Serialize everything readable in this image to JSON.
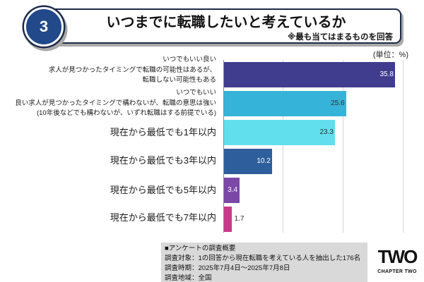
{
  "header": {
    "number": "3",
    "title": "いつまでに転職したいと考えているか",
    "subtitle": "※最も当てはまるものを回答"
  },
  "theme": {
    "frame": "#1d2a48",
    "accent": "#22498a",
    "panel": "#d9d9d9"
  },
  "chart_data": {
    "type": "bar",
    "orientation": "horizontal",
    "unit_label": "(単位：%)",
    "categories": [
      [
        "いつでもいい良い",
        "求人が見つかったタイミングで転職の可能性はあるが、",
        "転職しない可能性もある"
      ],
      [
        "いつでもいい",
        "良い求人が見つかったタイミングで構わないが、転職の意思は強い",
        "(10年後などでも構わないが、いずれ転職はする前提でいる)"
      ],
      [
        "現在から最低でも1年以内"
      ],
      [
        "現在から最低でも3年以内"
      ],
      [
        "現在から最低でも5年以内"
      ],
      [
        "現在から最低でも7年以内"
      ]
    ],
    "values": [
      35.8,
      25.6,
      23.3,
      10.2,
      3.4,
      1.7
    ],
    "colors": [
      "#403d8e",
      "#36b3d8",
      "#62dfec",
      "#2f5e9c",
      "#7b48a7",
      "#c8388b"
    ],
    "label_colors": [
      "#ffffff",
      "#333333",
      "#333333",
      "#ffffff",
      "#ffffff",
      "#333333"
    ],
    "xlim": [
      0,
      37.5
    ],
    "grid": true,
    "x_major_unit": 12.5
  },
  "survey": {
    "heading": "■アンケートの調査概要",
    "lines": [
      "調査対象：1の回答から現在転職を考えている人を抽出した176名",
      "調査時期：2025年7月4日～2025年7月8日",
      "調査地域：全国"
    ]
  },
  "logo": {
    "mark": "TWO",
    "name": "CHAPTER TWO"
  }
}
